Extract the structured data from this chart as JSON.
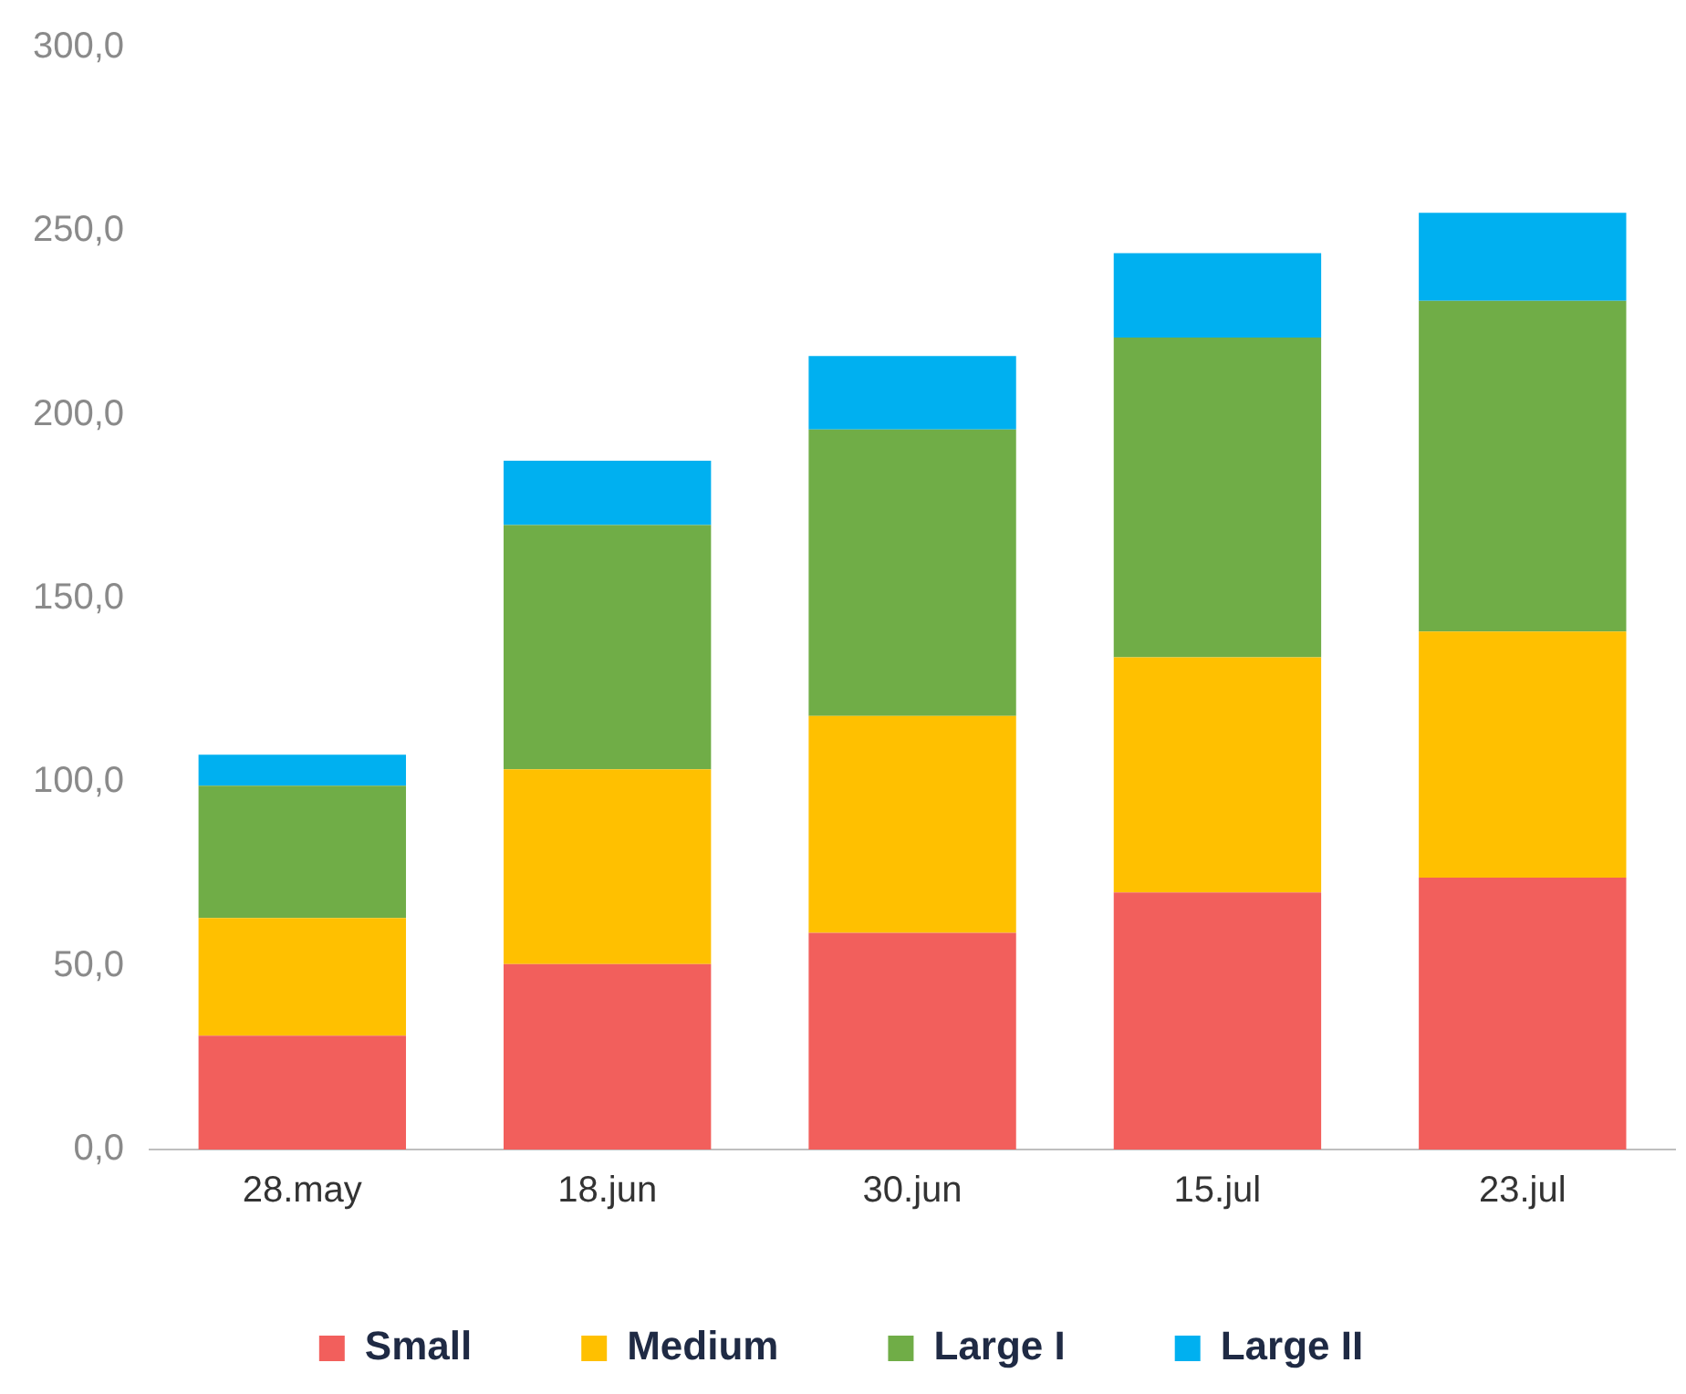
{
  "chart_data": {
    "type": "bar",
    "stacked": true,
    "categories": [
      "28.may",
      "18.jun",
      "30.jun",
      "15.jul",
      "23.jul"
    ],
    "series": [
      {
        "name": "Small",
        "color": "#f25f5c",
        "values": [
          31,
          50.5,
          59,
          70,
          74
        ]
      },
      {
        "name": "Medium",
        "color": "#ffc000",
        "values": [
          32,
          53,
          59,
          64,
          67
        ]
      },
      {
        "name": "Large I",
        "color": "#70ad47",
        "values": [
          36,
          66.5,
          78,
          87,
          90
        ]
      },
      {
        "name": "Large II",
        "color": "#00b0f0",
        "values": [
          8.5,
          17.5,
          20,
          23,
          24
        ]
      }
    ],
    "ylim": [
      0,
      300
    ],
    "yticks": [
      {
        "value": 0,
        "label": "0,0"
      },
      {
        "value": 50,
        "label": "50,0"
      },
      {
        "value": 100,
        "label": "100,0"
      },
      {
        "value": 150,
        "label": "150,0"
      },
      {
        "value": 200,
        "label": "200,0"
      },
      {
        "value": 250,
        "label": "250,0"
      },
      {
        "value": 300,
        "label": "300,0"
      }
    ],
    "grid": false,
    "legend": "bottom"
  }
}
